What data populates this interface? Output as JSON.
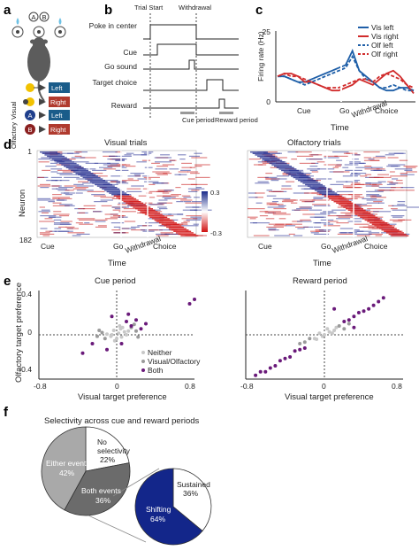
{
  "panels": {
    "a": "a",
    "b": "b",
    "c": "c",
    "d": "d",
    "e": "e",
    "f": "f"
  },
  "panel_a": {
    "port_labels": [
      "A",
      "B"
    ],
    "visual_label": "Visual",
    "olfactory_label": "Olfactory",
    "left_label": "Left",
    "right_label": "Right",
    "colors": {
      "visual_left": "#1a5c8a",
      "visual_right": "#b03a2e",
      "odor_a": "#1f3f8c",
      "odor_b": "#8b2020",
      "light": "#f2c200"
    }
  },
  "panel_b": {
    "top_labels": [
      "Trial Start",
      "Withdrawal"
    ],
    "rows": [
      "Poke\nin center",
      "Cue",
      "Go sound",
      "Target\nchoice",
      "Reward"
    ],
    "period_labels": [
      "Cue\nperiod",
      "Reward\nperiod"
    ]
  },
  "panel_c": {
    "ylabel": "Firing rate (Hz)",
    "xlabel": "Time",
    "yticks": [
      "0",
      "25"
    ],
    "xticks": [
      "Cue",
      "Go",
      "Withdrawal",
      "Choice"
    ],
    "legend": [
      "Vis left",
      "Vis right",
      "Olf left",
      "Olf right"
    ],
    "colors": {
      "left": "#1f5fa8",
      "right": "#d12c2c"
    }
  },
  "panel_d": {
    "titles": [
      "Visual trials",
      "Olfactory trials"
    ],
    "ylabel": "Neuron",
    "yticks": [
      "1",
      "182"
    ],
    "xticks": [
      "Cue",
      "Go",
      "Withdrawal",
      "Choice"
    ],
    "xlabel": "Time",
    "colorbar_ticks": [
      "0.3",
      "-0.3"
    ]
  },
  "panel_e": {
    "titles": [
      "Cue period",
      "Reward period"
    ],
    "ylabel": "Olfactory target preference",
    "xlabel": "Visual target preference",
    "xticks": [
      "-0.8",
      "0",
      "0.8"
    ],
    "yticks": [
      "0.4",
      "0",
      "-0.4"
    ],
    "legend": [
      "Neither",
      "Visual/Olfactory",
      "Both"
    ],
    "colors": {
      "neither": "#c8c8c8",
      "vis_olf": "#9a9a9a",
      "both": "#6a1a7a"
    }
  },
  "panel_f": {
    "title": "Selectivity across cue and reward periods",
    "slices": [
      {
        "label": "No\nselectivity\n22%",
        "value": 22,
        "color": "#ffffff"
      },
      {
        "label": "Both events\n36%",
        "value": 36,
        "color": "#6b6b6b"
      },
      {
        "label": "Either event\n42%",
        "value": 42,
        "color": "#a9a9a9"
      }
    ],
    "sub_slices": [
      {
        "label": "Sustained\n36%",
        "value": 36,
        "color": "#ffffff"
      },
      {
        "label": "Shifting\n64%",
        "value": 64,
        "color": "#13268a"
      }
    ]
  },
  "chart_data": [
    {
      "type": "line",
      "title": "",
      "xlabel": "Time",
      "ylabel": "Firing rate (Hz)",
      "ylim": [
        0,
        25
      ],
      "x": [
        0,
        1,
        2,
        3,
        4,
        5,
        6,
        7,
        8,
        9,
        10,
        11,
        12,
        13,
        14,
        15,
        16,
        17,
        18,
        19,
        20
      ],
      "series": [
        {
          "name": "Vis left",
          "values": [
            9,
            9,
            8,
            7,
            7,
            8,
            9,
            10,
            11,
            12,
            13,
            18,
            11,
            9,
            7,
            5,
            4,
            4,
            5,
            5,
            4
          ]
        },
        {
          "name": "Vis right",
          "values": [
            9,
            10,
            10,
            9,
            7,
            7,
            6,
            5,
            4,
            4,
            5,
            6,
            8,
            7,
            6,
            8,
            10,
            11,
            9,
            6,
            3
          ]
        },
        {
          "name": "Olf left",
          "values": [
            9,
            9,
            8,
            7,
            6,
            7,
            8,
            9,
            10,
            11,
            12,
            16,
            11,
            8,
            7,
            5,
            5,
            6,
            5,
            4,
            4
          ]
        },
        {
          "name": "Olf right",
          "values": [
            9,
            10,
            9,
            9,
            8,
            7,
            6,
            5,
            5,
            5,
            6,
            7,
            8,
            8,
            7,
            9,
            10,
            9,
            8,
            6,
            5
          ]
        }
      ]
    },
    {
      "type": "scatter",
      "title": "Cue period",
      "xlabel": "Visual target preference",
      "ylabel": "Olfactory target preference",
      "xlim": [
        -0.8,
        0.8
      ],
      "ylim": [
        -0.6,
        0.6
      ],
      "series": [
        {
          "name": "Neither",
          "x": [
            -0.05,
            0.02,
            0.05,
            -0.1,
            0.0,
            0.08,
            -0.03,
            0.1,
            0.04,
            -0.06,
            0.06,
            0.12,
            -0.02,
            0.03
          ],
          "y": [
            0.0,
            0.02,
            -0.03,
            0.01,
            -0.05,
            0.04,
            0.06,
            0.0,
            0.08,
            -0.02,
            0.1,
            0.05,
            -0.08,
            0.12
          ]
        },
        {
          "name": "Visual/Olfactory",
          "x": [
            -0.2,
            -0.15,
            0.15,
            0.2,
            -0.12,
            0.18,
            0.22,
            -0.18
          ],
          "y": [
            -0.02,
            0.03,
            0.1,
            0.05,
            -0.05,
            0.14,
            -0.03,
            0.06
          ]
        },
        {
          "name": "Both",
          "x": [
            -0.35,
            -0.25,
            -0.1,
            0.1,
            0.15,
            0.2,
            0.25,
            0.3,
            0.12,
            0.75,
            0.8,
            0.05,
            -0.05
          ],
          "y": [
            -0.25,
            -0.12,
            -0.2,
            0.18,
            0.12,
            0.2,
            0.08,
            0.15,
            0.28,
            0.42,
            0.48,
            -0.12,
            0.25
          ]
        }
      ]
    },
    {
      "type": "scatter",
      "title": "Reward period",
      "xlabel": "Visual target preference",
      "ylabel": "Olfactory target preference",
      "xlim": [
        -0.8,
        0.8
      ],
      "ylim": [
        -0.6,
        0.6
      ],
      "series": [
        {
          "name": "Neither",
          "x": [
            -0.1,
            -0.05,
            0.0,
            0.05,
            0.1,
            -0.02,
            0.03,
            0.08,
            -0.08,
            0.12
          ],
          "y": [
            -0.05,
            0.02,
            0.0,
            0.04,
            0.06,
            -0.02,
            0.08,
            0.02,
            -0.06,
            0.1
          ]
        },
        {
          "name": "Visual/Olfactory",
          "x": [
            -0.2,
            -0.15,
            0.15,
            0.2,
            0.25,
            -0.25
          ],
          "y": [
            -0.1,
            -0.05,
            0.12,
            0.08,
            0.15,
            -0.12
          ]
        },
        {
          "name": "Both",
          "x": [
            -0.7,
            -0.6,
            -0.55,
            -0.5,
            -0.45,
            -0.4,
            -0.35,
            -0.3,
            -0.25,
            -0.2,
            0.2,
            0.25,
            0.3,
            0.35,
            0.4,
            0.45,
            0.5,
            0.55,
            0.6,
            -0.65,
            0.1,
            0.3
          ],
          "y": [
            -0.55,
            -0.5,
            -0.45,
            -0.42,
            -0.35,
            -0.32,
            -0.3,
            -0.22,
            -0.2,
            -0.18,
            0.18,
            0.2,
            0.25,
            0.3,
            0.32,
            0.35,
            0.4,
            0.45,
            0.5,
            -0.5,
            0.35,
            0.1
          ]
        }
      ]
    },
    {
      "type": "pie",
      "title": "Selectivity across cue and reward periods",
      "categories": [
        "No selectivity",
        "Both events",
        "Either event"
      ],
      "values": [
        22,
        36,
        42
      ]
    },
    {
      "type": "pie",
      "title": "",
      "categories": [
        "Sustained",
        "Shifting"
      ],
      "values": [
        36,
        64
      ]
    }
  ]
}
